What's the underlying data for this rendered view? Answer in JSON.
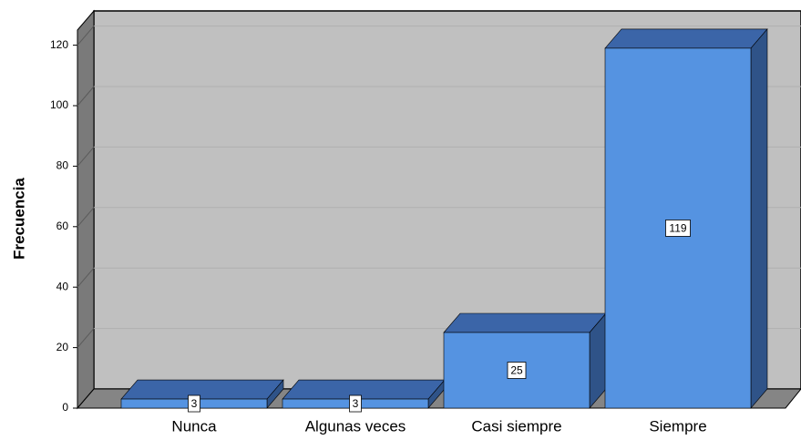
{
  "chart_data": {
    "type": "bar3d",
    "y_label": "Frecuencia",
    "categories": [
      "Nunca",
      "Algunas veces",
      "Casi siempre",
      "Siempre"
    ],
    "values": [
      3,
      3,
      25,
      119
    ],
    "color": "#5593e1",
    "ylim": [
      0,
      125
    ],
    "yticks": [
      0,
      20,
      40,
      60,
      80,
      100,
      120
    ],
    "grid": true
  }
}
